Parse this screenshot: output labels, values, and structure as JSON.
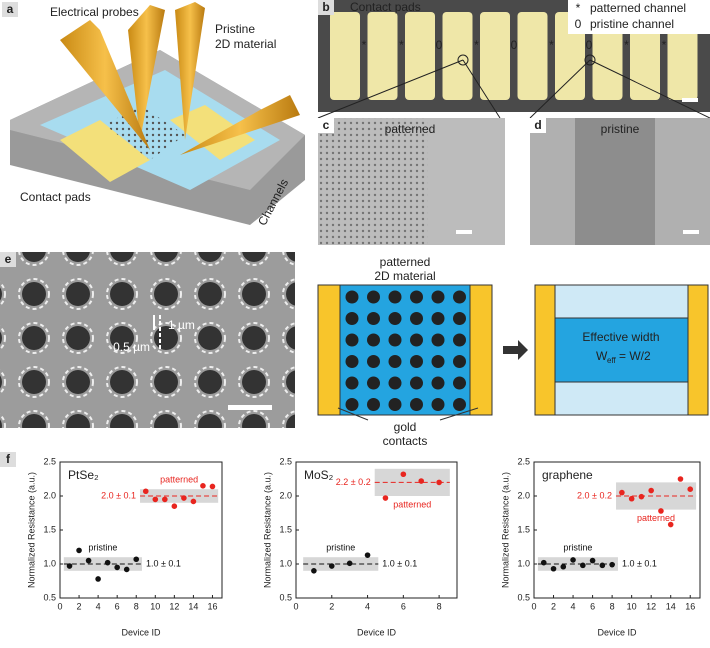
{
  "panel_a": {
    "label": "a",
    "probes": "Electrical probes",
    "pristine": [
      "Pristine",
      "2D material"
    ],
    "contact_pads": "Contact pads",
    "channels": "Channels"
  },
  "panel_b": {
    "label": "b",
    "contact_pads": "Contact pads",
    "legend": [
      {
        "symbol": "*",
        "text": "patterned channel"
      },
      {
        "symbol": "0",
        "text": "pristine channel"
      }
    ],
    "channel_marks": [
      "*",
      "*",
      "0",
      "*",
      "0",
      "*",
      "0",
      "*",
      "*"
    ]
  },
  "panel_c": {
    "label": "c",
    "text": "patterned"
  },
  "panel_d": {
    "label": "d",
    "text": "pristine"
  },
  "panel_e": {
    "label": "e",
    "d": "0.5 µm",
    "p": "1 µm"
  },
  "schematic": {
    "material": [
      "patterned",
      "2D material"
    ],
    "contacts": [
      "gold",
      "contacts"
    ],
    "effective": "Effective width",
    "weff": [
      "W",
      "eff",
      " = W/2"
    ]
  },
  "panel_f": {
    "label": "f"
  },
  "chart_data": [
    {
      "type": "scatter",
      "title": "PtSe₂",
      "x_label": "Device ID",
      "y_label": "Normalized Resistance (a.u.)",
      "xlim": [
        0,
        17
      ],
      "xticks": [
        0,
        2,
        4,
        6,
        8,
        10,
        12,
        14,
        16
      ],
      "ylim": [
        0.5,
        2.5
      ],
      "yticks": [
        0.5,
        {
          "value": 1,
          "label": "1.0"
        },
        1.5,
        {
          "value": 2,
          "label": "2.0"
        },
        2.5
      ],
      "series": [
        {
          "name": "pristine",
          "color": "#111111",
          "x": [
            1,
            2,
            3,
            4,
            5,
            6,
            7,
            8
          ],
          "values": [
            0.97,
            1.2,
            1.05,
            0.78,
            1.02,
            0.95,
            0.92,
            1.07
          ],
          "mean": 1,
          "error": 0.1,
          "label": "1.0 ± 0.1"
        },
        {
          "name": "patterned",
          "color": "#e8251f",
          "x": [
            9,
            10,
            11,
            12,
            13,
            14,
            15,
            16
          ],
          "values": [
            2.07,
            1.95,
            1.95,
            1.85,
            1.97,
            1.92,
            2.15,
            2.14
          ],
          "mean": 2,
          "error": 0.1,
          "label": "2.0 ± 0.1"
        }
      ]
    },
    {
      "type": "scatter",
      "title": "MoS₂",
      "x_label": "Device ID",
      "y_label": "Normalized Resistance (a.u.)",
      "xlim": [
        0,
        9
      ],
      "xticks": [
        0,
        2,
        4,
        6,
        8
      ],
      "ylim": [
        0.5,
        2.5
      ],
      "yticks": [
        0.5,
        {
          "value": 1,
          "label": "1.0"
        },
        1.5,
        {
          "value": 2,
          "label": "2.0"
        },
        2.5
      ],
      "series": [
        {
          "name": "pristine",
          "color": "#111111",
          "x": [
            1,
            2,
            3,
            4
          ],
          "values": [
            0.9,
            0.97,
            1.01,
            1.13
          ],
          "mean": 1,
          "error": 0.1,
          "label": "1.0 ± 0.1"
        },
        {
          "name": "patterned",
          "color": "#e8251f",
          "x": [
            5,
            6,
            7,
            8
          ],
          "values": [
            1.97,
            2.32,
            2.22,
            2.2
          ],
          "mean": 2.2,
          "error": 0.2,
          "label": "2.2 ± 0.2"
        }
      ]
    },
    {
      "type": "scatter",
      "title": "graphene",
      "x_label": "Device ID",
      "y_label": "Normalized Resistance (a.u.)",
      "xlim": [
        0,
        17
      ],
      "xticks": [
        0,
        2,
        4,
        6,
        8,
        10,
        12,
        14,
        16
      ],
      "ylim": [
        0.5,
        2.5
      ],
      "yticks": [
        0.5,
        {
          "value": 1,
          "label": "1.0"
        },
        1.5,
        {
          "value": 2,
          "label": "2.0"
        },
        2.5
      ],
      "series": [
        {
          "name": "pristine",
          "color": "#111111",
          "x": [
            1,
            2,
            3,
            4,
            5,
            6,
            7,
            8
          ],
          "values": [
            1.02,
            0.93,
            0.96,
            1.06,
            0.98,
            1.05,
            0.98,
            0.99
          ],
          "mean": 1,
          "error": 0.1,
          "label": "1.0 ± 0.1"
        },
        {
          "name": "patterned",
          "color": "#e8251f",
          "x": [
            9,
            10,
            11,
            12,
            13,
            14,
            15,
            16
          ],
          "values": [
            2.05,
            1.96,
            1.99,
            2.08,
            1.78,
            1.58,
            2.25,
            2.1
          ],
          "mean": 2,
          "error": 0.2,
          "label": "2.0 ± 0.2"
        }
      ]
    }
  ]
}
